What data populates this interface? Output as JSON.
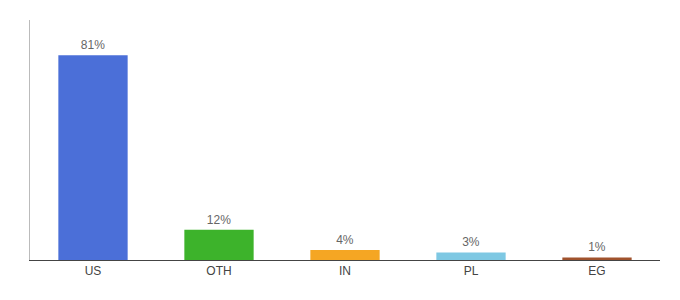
{
  "chart_data": {
    "type": "bar",
    "categories": [
      "US",
      "OTH",
      "IN",
      "PL",
      "EG"
    ],
    "values": [
      81,
      12,
      4,
      3,
      1
    ],
    "value_labels": [
      "81%",
      "12%",
      "4%",
      "3%",
      "1%"
    ],
    "data_labels": true,
    "colors": [
      "#4B6FD8",
      "#3DB32B",
      "#F5A623",
      "#7EC8E3",
      "#A0522D"
    ],
    "ylim": [
      0,
      95
    ],
    "grid": false,
    "tick_labels": "x"
  }
}
